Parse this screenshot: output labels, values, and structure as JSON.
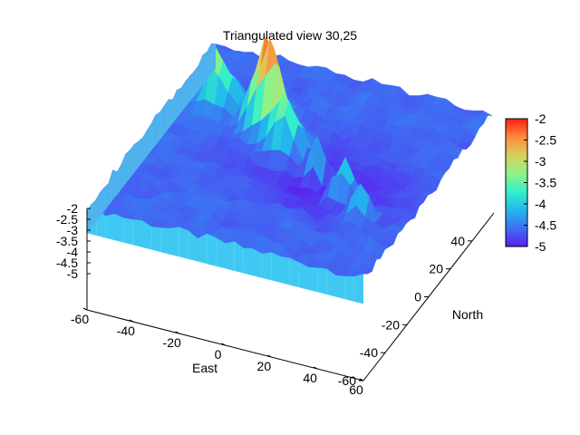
{
  "chart_data": {
    "type": "surface",
    "title": "Triangulated view 30,25",
    "view": [
      30,
      25
    ],
    "xlabel": "East",
    "ylabel": "North",
    "zlabel": "",
    "xlim": [
      -60,
      60
    ],
    "ylim": [
      -60,
      60
    ],
    "zlim": [
      -5,
      -2
    ],
    "x_ticks": [
      "-60",
      "-40",
      "-20",
      "0",
      "20",
      "40",
      "60"
    ],
    "y_ticks": [
      "-60",
      "-40",
      "-20",
      "0",
      "20",
      "40"
    ],
    "z_ticks": [
      "-2",
      "-2.5",
      "-3",
      "-3.5",
      "-4",
      "-4.5",
      "-5"
    ],
    "colorbar": {
      "ticks": [
        "-2",
        "-2.5",
        "-3",
        "-3.5",
        "-4",
        "-4.5",
        "-5"
      ],
      "range": [
        -5,
        -2
      ],
      "palette": "rainbow",
      "colors": [
        "#5a1ff0",
        "#3f6ef2",
        "#22b8ec",
        "#34f0c8",
        "#8ff28a",
        "#d8d05c",
        "#ff8a3d",
        "#ff1e12"
      ]
    },
    "base_level": -4.6,
    "peaks": [
      {
        "east": -42,
        "north": 24,
        "height": -2.8,
        "spread": 5
      },
      {
        "east": -20,
        "north": 20,
        "height": -2.1,
        "spread": 5
      },
      {
        "east": -14,
        "north": 14,
        "height": -2.4,
        "spread": 4
      },
      {
        "east": -5,
        "north": 8,
        "height": -3.0,
        "spread": 5
      },
      {
        "east": 12,
        "north": 0,
        "height": -3.1,
        "spread": 3
      },
      {
        "east": 28,
        "north": -10,
        "height": -3.2,
        "spread": 4
      },
      {
        "east": 40,
        "north": -20,
        "height": -3.3,
        "spread": 3
      }
    ],
    "grid": false,
    "legend": "none"
  }
}
